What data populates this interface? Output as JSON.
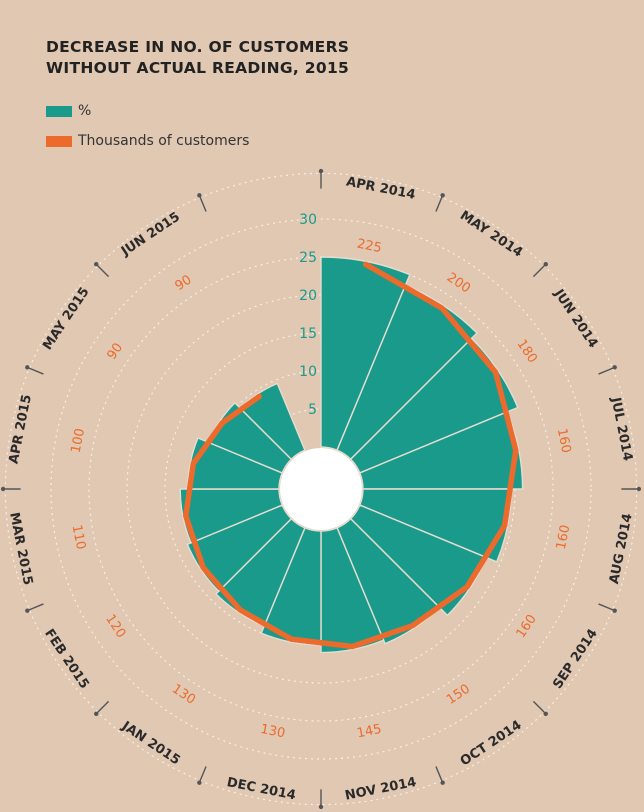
{
  "chart_data": {
    "type": "polar-bar-with-line",
    "title_lines": [
      "DECREASE IN NO. OF CUSTOMERS",
      "WITHOUT ACTUAL READING, 2015"
    ],
    "months": [
      "APR 2014",
      "MAY 2014",
      "JUN 2014",
      "JUL 2014",
      "AUG 2014",
      "SEP 2014",
      "OCT 2014",
      "NOV 2014",
      "DEC 2014",
      "JAN 2015",
      "FEB 2015",
      "MAR 2015",
      "APR 2015",
      "MAY 2015",
      "JUN 2015"
    ],
    "series": [
      {
        "name": "%",
        "color": "#1a9a8a",
        "values": [
          25,
          23.5,
          22.5,
          21,
          19.5,
          18,
          16.5,
          16,
          15,
          14,
          13.5,
          13,
          12,
          10.5,
          9.5
        ]
      },
      {
        "name": "Thousands of customers",
        "color": "#ec6a2c",
        "values": [
          225,
          200,
          180,
          160,
          160,
          160,
          150,
          145,
          130,
          130,
          120,
          110,
          100,
          90,
          90
        ]
      }
    ],
    "radial_axis_percent": {
      "ticks": [
        "5",
        "10",
        "15",
        "20",
        "25",
        "30"
      ],
      "range": [
        0,
        30
      ]
    },
    "radial_axis_thousands_labels": [
      "225",
      "200",
      "180",
      "160",
      "160",
      "160",
      "150",
      "145",
      "130",
      "130",
      "120",
      "110",
      "100",
      "90",
      "90"
    ]
  },
  "legend": {
    "items": [
      {
        "label": "%",
        "color": "#1a9a8a"
      },
      {
        "label": "Thousands of customers",
        "color": "#ec6a2c"
      }
    ]
  },
  "colors": {
    "background": "#e0c8b3",
    "teal": "#1a9a8a",
    "orange": "#ec6a2c",
    "grid": "#fbf3ea",
    "text": "#2a2a2a"
  }
}
